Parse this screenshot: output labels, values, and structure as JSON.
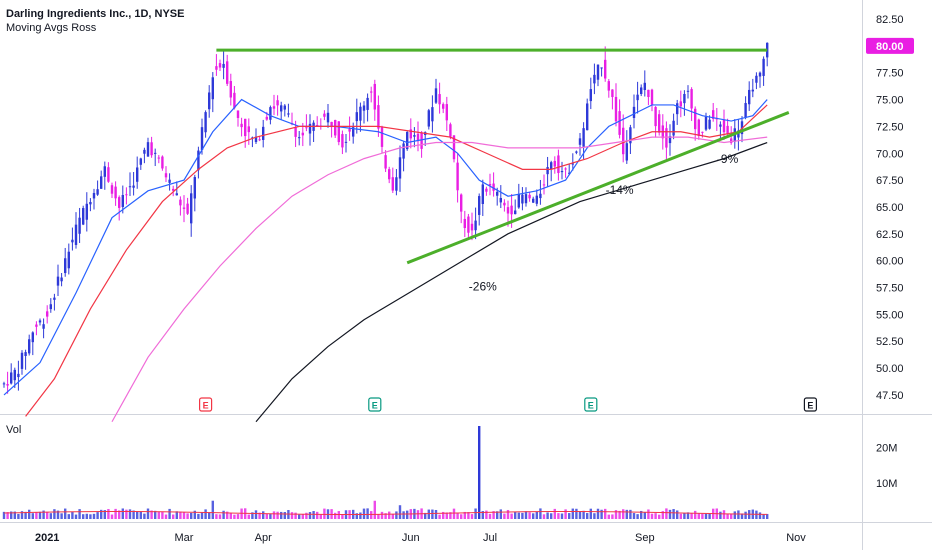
{
  "header": {
    "symbol_line": "Darling Ingredients Inc., 1D, NYSE",
    "indicator_name": "Moving Avgs Ross"
  },
  "volume_pane": {
    "label": "Vol"
  },
  "chart_data": {
    "type": "candlestick",
    "title": "Darling Ingredients Inc., 1D, NYSE",
    "price_axis": {
      "ticks": [
        82.5,
        80.0,
        77.5,
        75.0,
        72.5,
        70.0,
        67.5,
        65.0,
        62.5,
        60.0,
        57.5,
        55.0,
        52.5,
        50.0,
        47.5
      ],
      "tick_labels": [
        "82.50",
        "80.00",
        "77.50",
        "75.00",
        "72.50",
        "70.00",
        "67.50",
        "65.00",
        "62.50",
        "60.00",
        "57.50",
        "55.00",
        "52.50",
        "50.00",
        "47.50"
      ],
      "last_price": 80.0,
      "last_price_label": "80.00",
      "last_price_color": "#e91ee3"
    },
    "volume_axis": {
      "ticks": [
        20000000,
        10000000
      ],
      "tick_labels": [
        "20M",
        "10M"
      ]
    },
    "time_axis": {
      "labels": [
        {
          "text": "2021",
          "day": 12,
          "bold": true
        },
        {
          "text": "Mar",
          "day": 50
        },
        {
          "text": "Apr",
          "day": 72
        },
        {
          "text": "Jun",
          "day": 113
        },
        {
          "text": "Jul",
          "day": 135
        },
        {
          "text": "Sep",
          "day": 178
        },
        {
          "text": "Nov",
          "day": 220
        }
      ]
    },
    "ohlc_anchors": [
      {
        "day": 0,
        "close": 48.5
      },
      {
        "day": 4,
        "close": 50.0
      },
      {
        "day": 8,
        "close": 53.5
      },
      {
        "day": 12,
        "close": 55.0
      },
      {
        "day": 16,
        "close": 59.0
      },
      {
        "day": 20,
        "close": 63.0
      },
      {
        "day": 24,
        "close": 66.0
      },
      {
        "day": 28,
        "close": 68.5
      },
      {
        "day": 32,
        "close": 65.0
      },
      {
        "day": 36,
        "close": 67.5
      },
      {
        "day": 40,
        "close": 71.0
      },
      {
        "day": 44,
        "close": 68.5
      },
      {
        "day": 48,
        "close": 66.0
      },
      {
        "day": 51,
        "close": 64.0
      },
      {
        "day": 54,
        "close": 70.0
      },
      {
        "day": 58,
        "close": 77.5
      },
      {
        "day": 61,
        "close": 78.5
      },
      {
        "day": 64,
        "close": 74.0
      },
      {
        "day": 67,
        "close": 72.0
      },
      {
        "day": 70,
        "close": 71.0
      },
      {
        "day": 74,
        "close": 74.5
      },
      {
        "day": 78,
        "close": 74.0
      },
      {
        "day": 82,
        "close": 71.5
      },
      {
        "day": 86,
        "close": 72.5
      },
      {
        "day": 90,
        "close": 73.5
      },
      {
        "day": 94,
        "close": 71.0
      },
      {
        "day": 98,
        "close": 73.5
      },
      {
        "day": 102,
        "close": 76.0
      },
      {
        "day": 105,
        "close": 70.0
      },
      {
        "day": 108,
        "close": 67.0
      },
      {
        "day": 112,
        "close": 72.0
      },
      {
        "day": 116,
        "close": 71.0
      },
      {
        "day": 120,
        "close": 76.0
      },
      {
        "day": 124,
        "close": 72.0
      },
      {
        "day": 127,
        "close": 64.0
      },
      {
        "day": 130,
        "close": 62.5
      },
      {
        "day": 133,
        "close": 67.0
      },
      {
        "day": 136,
        "close": 66.5
      },
      {
        "day": 140,
        "close": 64.5
      },
      {
        "day": 144,
        "close": 66.0
      },
      {
        "day": 148,
        "close": 65.5
      },
      {
        "day": 152,
        "close": 69.5
      },
      {
        "day": 156,
        "close": 68.0
      },
      {
        "day": 160,
        "close": 71.0
      },
      {
        "day": 163,
        "close": 76.0
      },
      {
        "day": 166,
        "close": 78.5
      },
      {
        "day": 169,
        "close": 75.0
      },
      {
        "day": 172,
        "close": 70.0
      },
      {
        "day": 175,
        "close": 74.5
      },
      {
        "day": 178,
        "close": 76.5
      },
      {
        "day": 181,
        "close": 73.0
      },
      {
        "day": 184,
        "close": 71.0
      },
      {
        "day": 187,
        "close": 74.5
      },
      {
        "day": 190,
        "close": 75.5
      },
      {
        "day": 193,
        "close": 71.5
      },
      {
        "day": 196,
        "close": 73.5
      },
      {
        "day": 199,
        "close": 72.5
      },
      {
        "day": 202,
        "close": 71.5
      },
      {
        "day": 205,
        "close": 73.0
      },
      {
        "day": 208,
        "close": 76.5
      },
      {
        "day": 210,
        "close": 77.0
      },
      {
        "day": 212,
        "close": 80.0
      }
    ],
    "moving_averages": [
      {
        "color": "#2962ff",
        "points": [
          [
            0,
            47.5
          ],
          [
            10,
            50.5
          ],
          [
            20,
            57.0
          ],
          [
            30,
            64.0
          ],
          [
            40,
            66.5
          ],
          [
            50,
            67.5
          ],
          [
            58,
            72.0
          ],
          [
            66,
            75.0
          ],
          [
            74,
            73.5
          ],
          [
            82,
            72.5
          ],
          [
            92,
            72.5
          ],
          [
            104,
            72.0
          ],
          [
            112,
            71.0
          ],
          [
            120,
            71.5
          ],
          [
            126,
            70.0
          ],
          [
            132,
            67.5
          ],
          [
            140,
            66.0
          ],
          [
            148,
            66.5
          ],
          [
            156,
            67.5
          ],
          [
            162,
            70.5
          ],
          [
            168,
            72.5
          ],
          [
            174,
            73.5
          ],
          [
            180,
            74.5
          ],
          [
            186,
            74.5
          ],
          [
            194,
            73.5
          ],
          [
            202,
            73.0
          ],
          [
            208,
            73.5
          ],
          [
            212,
            75.0
          ]
        ]
      },
      {
        "color": "#f23645",
        "points": [
          [
            6,
            45.5
          ],
          [
            14,
            49.0
          ],
          [
            24,
            55.5
          ],
          [
            34,
            61.0
          ],
          [
            44,
            65.5
          ],
          [
            54,
            68.5
          ],
          [
            62,
            70.5
          ],
          [
            70,
            71.5
          ],
          [
            82,
            72.5
          ],
          [
            92,
            72.5
          ],
          [
            104,
            72.5
          ],
          [
            114,
            72.0
          ],
          [
            124,
            71.5
          ],
          [
            134,
            70.0
          ],
          [
            144,
            68.5
          ],
          [
            152,
            68.5
          ],
          [
            162,
            69.5
          ],
          [
            172,
            71.0
          ],
          [
            180,
            72.0
          ],
          [
            188,
            72.0
          ],
          [
            196,
            71.5
          ],
          [
            204,
            72.0
          ],
          [
            212,
            74.5
          ]
        ]
      },
      {
        "color": "#f06cd8",
        "points": [
          [
            30,
            45.0
          ],
          [
            40,
            51.0
          ],
          [
            50,
            55.5
          ],
          [
            60,
            59.5
          ],
          [
            70,
            63.0
          ],
          [
            80,
            66.0
          ],
          [
            90,
            68.0
          ],
          [
            100,
            69.5
          ],
          [
            110,
            70.5
          ],
          [
            120,
            71.0
          ],
          [
            130,
            71.0
          ],
          [
            140,
            70.5
          ],
          [
            150,
            70.5
          ],
          [
            160,
            70.5
          ],
          [
            170,
            71.0
          ],
          [
            180,
            71.5
          ],
          [
            190,
            71.5
          ],
          [
            200,
            71.0
          ],
          [
            212,
            71.5
          ]
        ]
      },
      {
        "color": "#131722",
        "points": [
          [
            70,
            45.0
          ],
          [
            80,
            49.0
          ],
          [
            90,
            52.0
          ],
          [
            100,
            54.5
          ],
          [
            110,
            56.5
          ],
          [
            120,
            58.5
          ],
          [
            130,
            60.5
          ],
          [
            140,
            62.5
          ],
          [
            150,
            64.0
          ],
          [
            160,
            65.5
          ],
          [
            170,
            66.5
          ],
          [
            180,
            67.5
          ],
          [
            190,
            68.5
          ],
          [
            200,
            69.5
          ],
          [
            212,
            71.0
          ]
        ]
      }
    ],
    "trendlines": [
      {
        "name": "resistance",
        "color": "#4caf2a",
        "from": {
          "day": 59,
          "price": 79.6
        },
        "to": {
          "day": 212,
          "price": 79.6
        }
      },
      {
        "name": "support",
        "color": "#4caf2a",
        "from": {
          "day": 112,
          "price": 59.8
        },
        "to": {
          "day": 218,
          "price": 73.8
        }
      }
    ],
    "annotations": [
      {
        "text": "-26%",
        "day": 133,
        "price": 57.2
      },
      {
        "text": "-14%",
        "day": 171,
        "price": 66.2
      },
      {
        "text": "-9%",
        "day": 201,
        "price": 69.1
      }
    ],
    "earnings_markers": [
      {
        "day": 56,
        "label": "E",
        "color": "#f23645"
      },
      {
        "day": 103,
        "label": "E",
        "color": "#089981"
      },
      {
        "day": 163,
        "label": "E",
        "color": "#089981"
      },
      {
        "day": 224,
        "label": "E",
        "color": "#131722"
      }
    ],
    "volume_spike": {
      "day": 132,
      "value": 26000000
    },
    "colors": {
      "up": "#2e39d8",
      "down": "#e91ee3"
    }
  }
}
